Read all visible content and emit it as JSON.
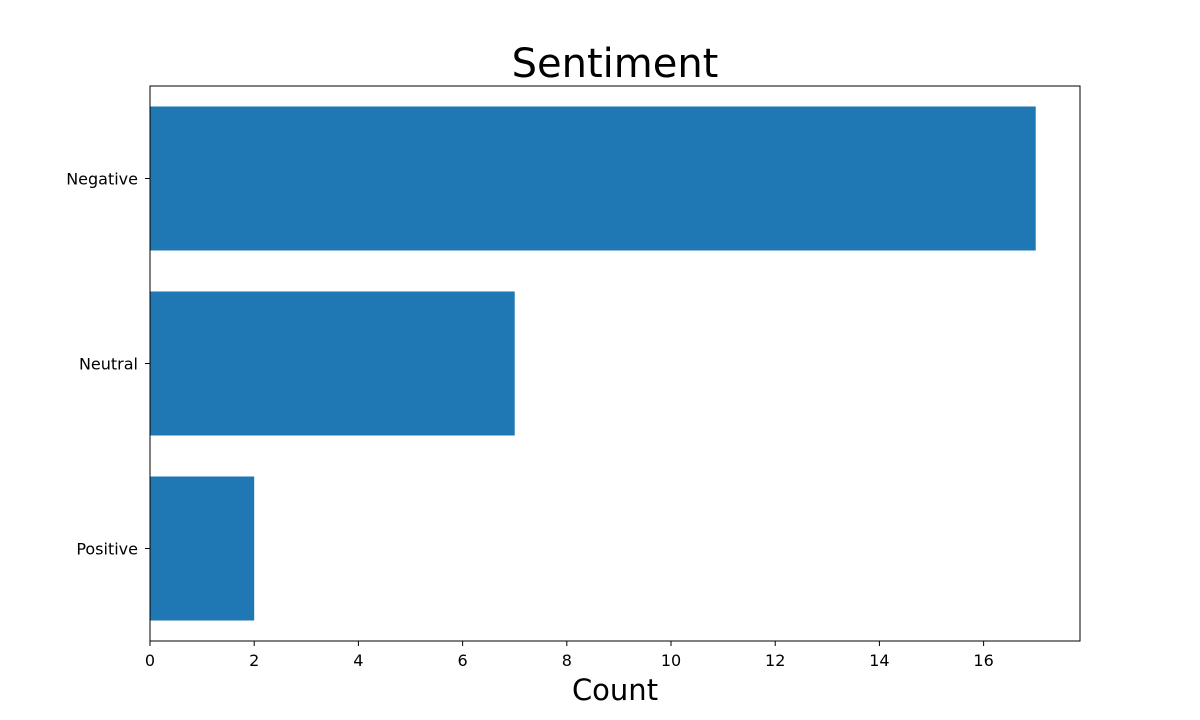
{
  "chart_data": {
    "type": "bar",
    "orientation": "horizontal",
    "title": "Sentiment",
    "xlabel": "Count",
    "ylabel": "",
    "categories": [
      "Negative",
      "Neutral",
      "Positive"
    ],
    "values": [
      17,
      7,
      2
    ],
    "xlim": [
      0,
      17.85
    ],
    "xticks": [
      0,
      2,
      4,
      6,
      8,
      10,
      12,
      14,
      16
    ],
    "grid": false,
    "legend": false,
    "colors": {
      "bar": "#1f77b4",
      "axes": "#000000",
      "background": "#ffffff"
    }
  }
}
